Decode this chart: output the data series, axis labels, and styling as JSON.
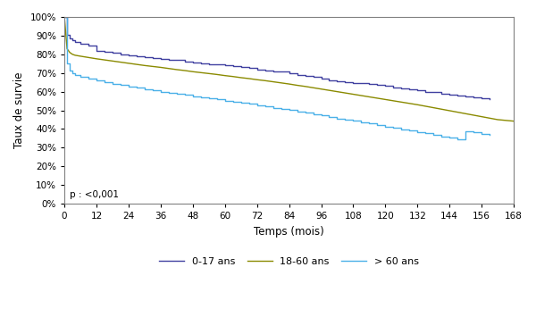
{
  "title": "",
  "xlabel": "Temps (mois)",
  "ylabel": "Taux de survie",
  "xlim": [
    0,
    168
  ],
  "ylim": [
    0,
    1.0
  ],
  "xticks": [
    0,
    12,
    24,
    36,
    48,
    60,
    72,
    84,
    96,
    108,
    120,
    132,
    144,
    156,
    168
  ],
  "yticks": [
    0.0,
    0.1,
    0.2,
    0.3,
    0.4,
    0.5,
    0.6,
    0.7,
    0.8,
    0.9,
    1.0
  ],
  "pvalue_text": "p : <0,001",
  "legend_labels": [
    "0-17 ans",
    "18-60 ans",
    "> 60 ans"
  ],
  "legend_colors": [
    "#4040a0",
    "#8a8a00",
    "#4ab0e8"
  ],
  "background_color": "#ffffff",
  "curve_0_17": {
    "x": [
      0,
      1,
      2,
      3,
      4,
      6,
      9,
      12,
      15,
      18,
      21,
      24,
      27,
      30,
      33,
      36,
      39,
      42,
      45,
      48,
      51,
      54,
      57,
      60,
      63,
      66,
      69,
      72,
      75,
      78,
      81,
      84,
      87,
      90,
      93,
      96,
      99,
      102,
      105,
      108,
      111,
      114,
      117,
      120,
      123,
      126,
      129,
      132,
      135,
      138,
      141,
      144,
      147,
      150,
      153,
      156,
      159
    ],
    "y": [
      1.0,
      0.905,
      0.885,
      0.875,
      0.865,
      0.855,
      0.845,
      0.82,
      0.812,
      0.808,
      0.8,
      0.795,
      0.788,
      0.783,
      0.78,
      0.776,
      0.772,
      0.77,
      0.762,
      0.756,
      0.752,
      0.748,
      0.746,
      0.742,
      0.736,
      0.73,
      0.725,
      0.72,
      0.715,
      0.71,
      0.706,
      0.7,
      0.69,
      0.685,
      0.678,
      0.668,
      0.662,
      0.656,
      0.652,
      0.648,
      0.644,
      0.64,
      0.636,
      0.63,
      0.624,
      0.618,
      0.612,
      0.606,
      0.6,
      0.596,
      0.59,
      0.585,
      0.58,
      0.575,
      0.57,
      0.565,
      0.56
    ]
  },
  "curve_18_60": {
    "x": [
      0,
      1,
      2,
      3,
      4,
      6,
      9,
      12,
      15,
      18,
      21,
      24,
      27,
      30,
      33,
      36,
      39,
      42,
      45,
      48,
      51,
      54,
      57,
      60,
      63,
      66,
      69,
      72,
      75,
      78,
      81,
      84,
      87,
      90,
      93,
      96,
      99,
      102,
      105,
      108,
      111,
      114,
      117,
      120,
      123,
      126,
      129,
      132,
      135,
      138,
      141,
      144,
      147,
      150,
      153,
      156,
      159,
      162,
      165,
      168
    ],
    "y": [
      1.0,
      0.83,
      0.81,
      0.8,
      0.795,
      0.79,
      0.783,
      0.776,
      0.77,
      0.764,
      0.758,
      0.752,
      0.746,
      0.74,
      0.735,
      0.73,
      0.724,
      0.718,
      0.713,
      0.707,
      0.702,
      0.697,
      0.692,
      0.686,
      0.681,
      0.675,
      0.67,
      0.664,
      0.659,
      0.653,
      0.647,
      0.641,
      0.634,
      0.628,
      0.621,
      0.614,
      0.607,
      0.6,
      0.593,
      0.586,
      0.579,
      0.572,
      0.565,
      0.558,
      0.551,
      0.544,
      0.537,
      0.53,
      0.522,
      0.514,
      0.506,
      0.498,
      0.49,
      0.482,
      0.474,
      0.466,
      0.458,
      0.45,
      0.446,
      0.442
    ]
  },
  "curve_60plus": {
    "x": [
      0,
      1,
      2,
      3,
      4,
      6,
      9,
      12,
      15,
      18,
      21,
      24,
      27,
      30,
      33,
      36,
      39,
      42,
      45,
      48,
      51,
      54,
      57,
      60,
      63,
      66,
      69,
      72,
      75,
      78,
      81,
      84,
      87,
      90,
      93,
      96,
      99,
      102,
      105,
      108,
      111,
      114,
      117,
      120,
      123,
      126,
      129,
      132,
      135,
      138,
      141,
      144,
      147,
      150,
      153,
      156,
      159
    ],
    "y": [
      1.0,
      0.75,
      0.715,
      0.7,
      0.69,
      0.68,
      0.668,
      0.658,
      0.65,
      0.642,
      0.635,
      0.627,
      0.62,
      0.613,
      0.607,
      0.6,
      0.594,
      0.588,
      0.582,
      0.576,
      0.57,
      0.564,
      0.558,
      0.552,
      0.546,
      0.54,
      0.534,
      0.527,
      0.52,
      0.514,
      0.508,
      0.501,
      0.494,
      0.487,
      0.479,
      0.472,
      0.464,
      0.457,
      0.45,
      0.443,
      0.436,
      0.429,
      0.421,
      0.413,
      0.406,
      0.398,
      0.391,
      0.383,
      0.376,
      0.368,
      0.361,
      0.353,
      0.346,
      0.39,
      0.383,
      0.375,
      0.368
    ]
  }
}
